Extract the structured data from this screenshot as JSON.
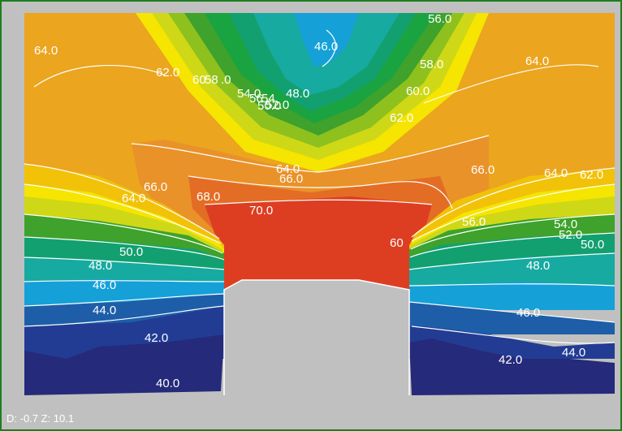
{
  "chart_data": {
    "type": "heatmap",
    "subtype": "contour",
    "levels": [
      40.0,
      42.0,
      44.0,
      46.0,
      48.0,
      50.0,
      52.0,
      54.0,
      56.0,
      58.0,
      60.0,
      62.0,
      64.0,
      66.0,
      68.0,
      70.0
    ],
    "band_colors": [
      "#262a7a",
      "#223c94",
      "#1e5ea8",
      "#15a0d8",
      "#17aaa0",
      "#13a070",
      "#1aa341",
      "#3ea22c",
      "#8ec11e",
      "#cfd816",
      "#f5e500",
      "#f2c208",
      "#eba51e",
      "#e9922a",
      "#e46d25",
      "#dd3e22",
      "#d92125"
    ],
    "background_color": "#c0c0c0",
    "line_color": "#ffffff",
    "contour_labels": [
      "56.0",
      "46.0",
      "58.0",
      "64.0",
      "64.0",
      "62.0",
      "60",
      "58",
      ".0",
      "54.0",
      "56",
      "54",
      "50.0",
      "48.0",
      "52.0",
      "60.0",
      "62.0",
      "64.0",
      "66.0",
      "66.0",
      "64.0",
      "62.0",
      "66.0",
      "64.0",
      "68.0",
      "70.0",
      "56.0",
      "54.0",
      "52.0",
      "50.0",
      "48.0",
      "60",
      "50.0",
      "48.0",
      "46.0",
      "44.0",
      "42.0",
      "40.0",
      "46.0",
      "44.0",
      "42.0"
    ]
  },
  "status": {
    "text": "D: -0.7 Z: 10.1"
  }
}
